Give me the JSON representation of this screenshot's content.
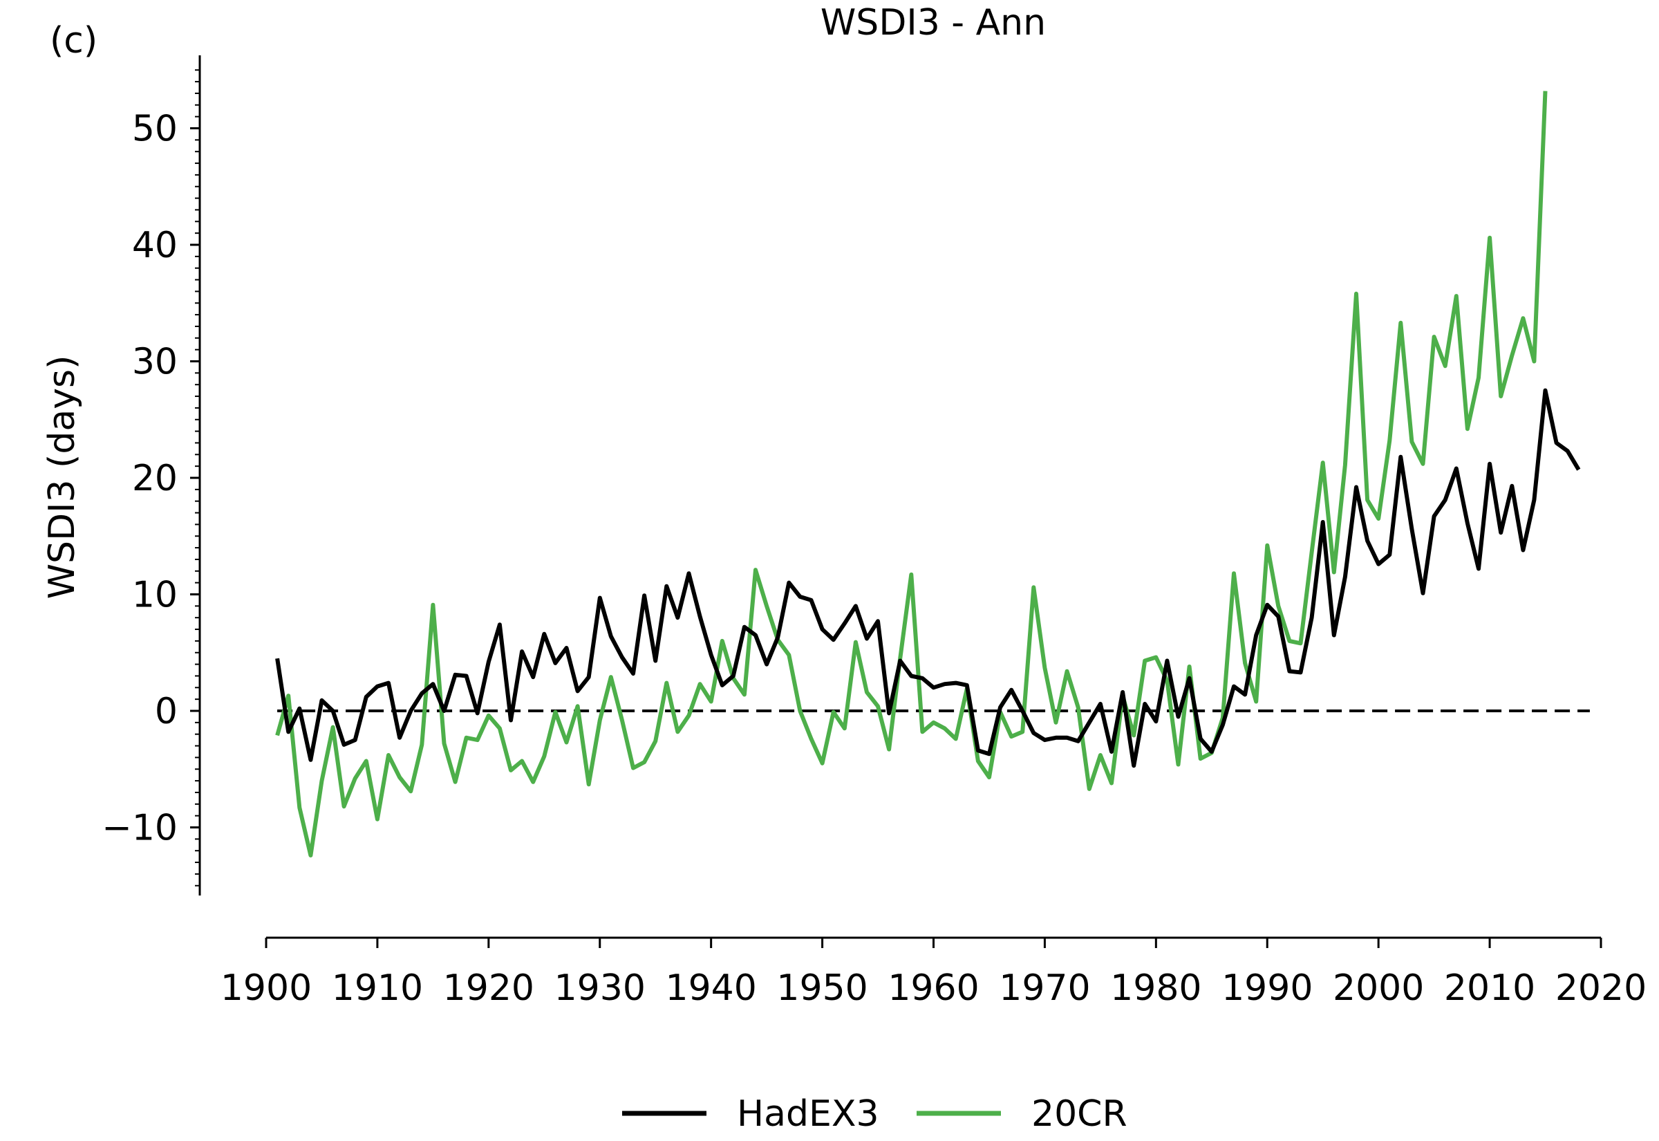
{
  "panel_label": "(c)",
  "chart_data": {
    "type": "line",
    "title": "WSDI3 - Ann",
    "xlabel": "",
    "ylabel": "WSDI3 (days)",
    "xlim": [
      1900,
      2020
    ],
    "ylim": [
      -16,
      56
    ],
    "xticks": [
      1900,
      1910,
      1920,
      1930,
      1940,
      1950,
      1960,
      1970,
      1980,
      1990,
      2000,
      2010,
      2020
    ],
    "yticks": [
      -10,
      0,
      10,
      20,
      30,
      40,
      50
    ],
    "ytick_labels": [
      "−10",
      "0",
      "10",
      "20",
      "30",
      "40",
      "50"
    ],
    "reference_line": 0,
    "grid": false,
    "legend_position": "bottom-center",
    "colors": {
      "HadEX3": "#000000",
      "20CR": "#4daf4a"
    },
    "series": [
      {
        "name": "HadEX3",
        "x_start": 1901,
        "values": [
          4.5,
          -1.8,
          0.2,
          -4.2,
          0.9,
          0.0,
          -2.9,
          -2.5,
          1.2,
          2.1,
          2.4,
          -2.3,
          0.0,
          1.5,
          2.3,
          0.0,
          3.1,
          3.0,
          -0.2,
          4.2,
          7.4,
          -0.8,
          5.1,
          2.9,
          6.6,
          4.1,
          5.4,
          1.7,
          2.9,
          9.7,
          6.4,
          4.6,
          3.2,
          9.9,
          4.3,
          10.7,
          8.0,
          11.8,
          8.1,
          4.8,
          2.2,
          3.0,
          7.2,
          6.5,
          4.0,
          6.3,
          11.0,
          9.8,
          9.5,
          7.0,
          6.1,
          7.5,
          9.0,
          6.2,
          7.7,
          -0.2,
          4.3,
          3.0,
          2.8,
          2.0,
          2.3,
          2.4,
          2.2,
          -3.4,
          -3.7,
          0.3,
          1.8,
          0.0,
          -1.9,
          -2.5,
          -2.3,
          -2.3,
          -2.6,
          -1.0,
          0.6,
          -3.5,
          1.6,
          -4.7,
          0.6,
          -0.9,
          4.3,
          -0.5,
          2.8,
          -2.4,
          -3.5,
          -1.2,
          2.1,
          1.4,
          6.5,
          9.1,
          8.1,
          3.4,
          3.3,
          8.0,
          16.2,
          6.5,
          11.5,
          19.2,
          14.6,
          12.6,
          13.4,
          21.8,
          15.6,
          10.1,
          16.7,
          18.1,
          20.8,
          16.1,
          12.2,
          21.2,
          15.3,
          19.3,
          13.8,
          18.1,
          27.5,
          23.0,
          22.3,
          20.7
        ]
      },
      {
        "name": "20CR",
        "x_start": 1901,
        "values": [
          -2.1,
          1.3,
          -8.3,
          -12.4,
          -6.0,
          -1.4,
          -8.2,
          -5.8,
          -4.3,
          -9.3,
          -3.8,
          -5.7,
          -6.9,
          -2.9,
          9.1,
          -2.8,
          -6.1,
          -2.3,
          -2.5,
          -0.4,
          -1.5,
          -5.1,
          -4.3,
          -6.1,
          -3.9,
          -0.1,
          -2.7,
          0.4,
          -6.3,
          -0.8,
          2.9,
          -0.8,
          -4.9,
          -4.4,
          -2.6,
          2.4,
          -1.8,
          -0.4,
          2.3,
          0.8,
          6.0,
          2.8,
          1.4,
          12.1,
          9.0,
          6.1,
          4.8,
          0.0,
          -2.4,
          -4.5,
          -0.1,
          -1.5,
          5.9,
          1.6,
          0.4,
          -3.3,
          4.5,
          11.7,
          -1.8,
          -1.0,
          -1.5,
          -2.4,
          1.9,
          -4.3,
          -5.7,
          -0.1,
          -2.2,
          -1.8,
          10.6,
          3.7,
          -1.0,
          3.4,
          0.3,
          -6.7,
          -3.8,
          -6.2,
          1.3,
          -2.1,
          4.3,
          4.6,
          2.6,
          -4.6,
          3.8,
          -4.1,
          -3.6,
          -0.6,
          11.8,
          4.1,
          0.8,
          14.2,
          9.0,
          6.0,
          5.8,
          13.6,
          21.3,
          11.9,
          21.1,
          35.8,
          18.1,
          16.5,
          23.2,
          33.3,
          23.1,
          21.2,
          32.1,
          29.6,
          35.6,
          24.2,
          28.6,
          40.6,
          27.0,
          30.5,
          33.7,
          30.0,
          53.2
        ]
      }
    ]
  }
}
